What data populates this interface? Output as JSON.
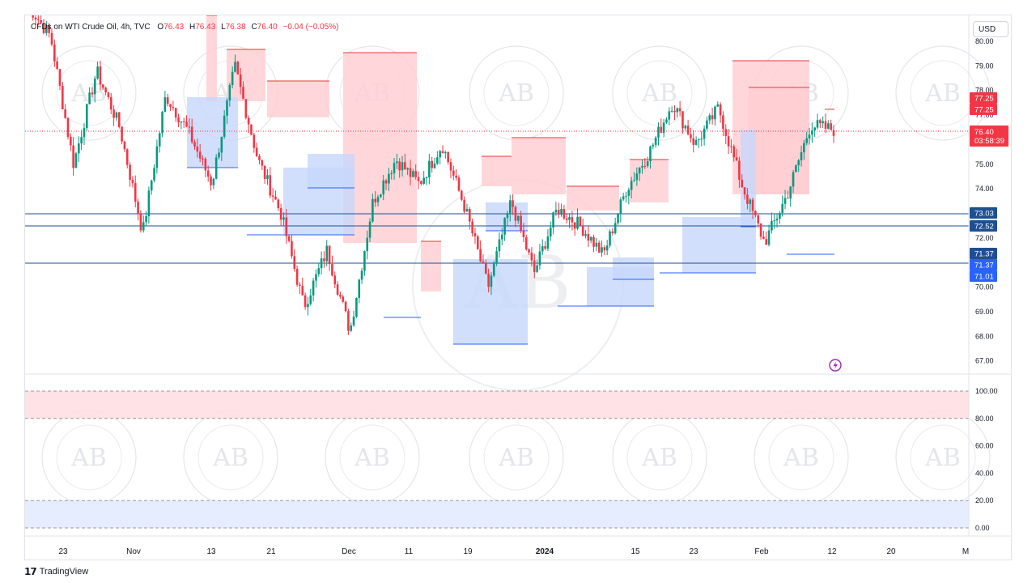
{
  "header": {
    "symbol": "CFDs on WTI Crude Oil, 4h, TVC",
    "open_label": "O",
    "open": "76.43",
    "high_label": "H",
    "high": "76.43",
    "low_label": "L",
    "low": "76.38",
    "close_label": "C",
    "close": "76.40",
    "change": "−0.04 (−0.05%)"
  },
  "currency_button": "USD",
  "brand": "TradingView",
  "watermark_text": "AB",
  "colors": {
    "up": "#089981",
    "down": "#f23645",
    "line_blue": "#2962ff",
    "zone_red": "#ffcdd2",
    "zone_blue": "#c5d7fb",
    "h_line": "#1e4f91"
  },
  "price_axis": {
    "labels": [
      "80.00",
      "79.00",
      "78.00",
      "77.00",
      "75.00",
      "74.00",
      "72.00",
      "70.00",
      "69.00",
      "68.00",
      "67.00"
    ],
    "levels": [
      {
        "price": 77.25,
        "label": "77.25",
        "color": "#f23645"
      },
      {
        "price": 77.25,
        "label": "77.25",
        "color": "#f23645"
      },
      {
        "price": 73.03,
        "label": "73.03",
        "color": "#1e4f91"
      },
      {
        "price": 72.52,
        "label": "72.52",
        "color": "#1e4f91"
      },
      {
        "price": 71.37,
        "label": "71.37",
        "color": "#1e4f91"
      },
      {
        "price": 71.37,
        "label": "71.37",
        "color": "#2962ff"
      },
      {
        "price": 71.01,
        "label": "71.01",
        "color": "#2962ff"
      }
    ],
    "current": {
      "price": 76.4,
      "label": "76.40",
      "countdown": "03:58:39",
      "color": "#f23645"
    }
  },
  "oscillator_axis": {
    "labels": [
      "100.00",
      "80.00",
      "60.00",
      "40.00",
      "20.00",
      "0.00"
    ]
  },
  "time_axis": {
    "labels": [
      "23",
      "Nov",
      "13",
      "21",
      "Dec",
      "11",
      "19",
      "2024",
      "15",
      "23",
      "Feb",
      "12",
      "20",
      "M"
    ]
  },
  "chart_data": {
    "type": "candlestick",
    "instrument": "CFDs on WTI Crude Oil",
    "timeframe": "4h",
    "y_range": [
      66.5,
      80.5
    ],
    "horizontal_lines": [
      73.03,
      72.52,
      71.37
    ],
    "current_price": 76.4,
    "close_path": [
      [
        "Nov",
        81.5
      ],
      [
        "Nov",
        80.2
      ],
      [
        "mid-Nov",
        75.0
      ],
      [
        "13",
        78.8
      ],
      [
        "mid-Nov",
        76.5
      ],
      [
        "21",
        72.2
      ],
      [
        "21",
        77.8
      ],
      [
        "late-Nov",
        76.3
      ],
      [
        "late-Nov",
        74.2
      ],
      [
        "Dec",
        79.0
      ],
      [
        "Dec",
        75.2
      ],
      [
        "early-Dec",
        73.0
      ],
      [
        "11",
        69.2
      ],
      [
        "11",
        71.5
      ],
      [
        "mid-Dec",
        68.2
      ],
      [
        "19",
        73.5
      ],
      [
        "19",
        75.2
      ],
      [
        "late-Dec",
        74.2
      ],
      [
        "late-Dec",
        75.8
      ],
      [
        "2024",
        73.2
      ],
      [
        "2024",
        70.0
      ],
      [
        "early-Jan",
        73.5
      ],
      [
        "early-Jan",
        70.6
      ],
      [
        "15",
        73.2
      ],
      [
        "15",
        72.5
      ],
      [
        "mid-Jan",
        71.3
      ],
      [
        "23",
        74.0
      ],
      [
        "23",
        75.5
      ],
      [
        "late-Jan",
        77.5
      ],
      [
        "late-Jan",
        75.8
      ],
      [
        "Feb",
        77.3
      ],
      [
        "Feb",
        74.2
      ],
      [
        "early-Feb",
        71.8
      ],
      [
        "early-Feb",
        73.8
      ],
      [
        "12",
        76.6
      ],
      [
        "12",
        76.4
      ]
    ],
    "oscillator_bands": {
      "overbought": 80,
      "oversold": 20,
      "range": [
        0,
        100
      ]
    }
  }
}
